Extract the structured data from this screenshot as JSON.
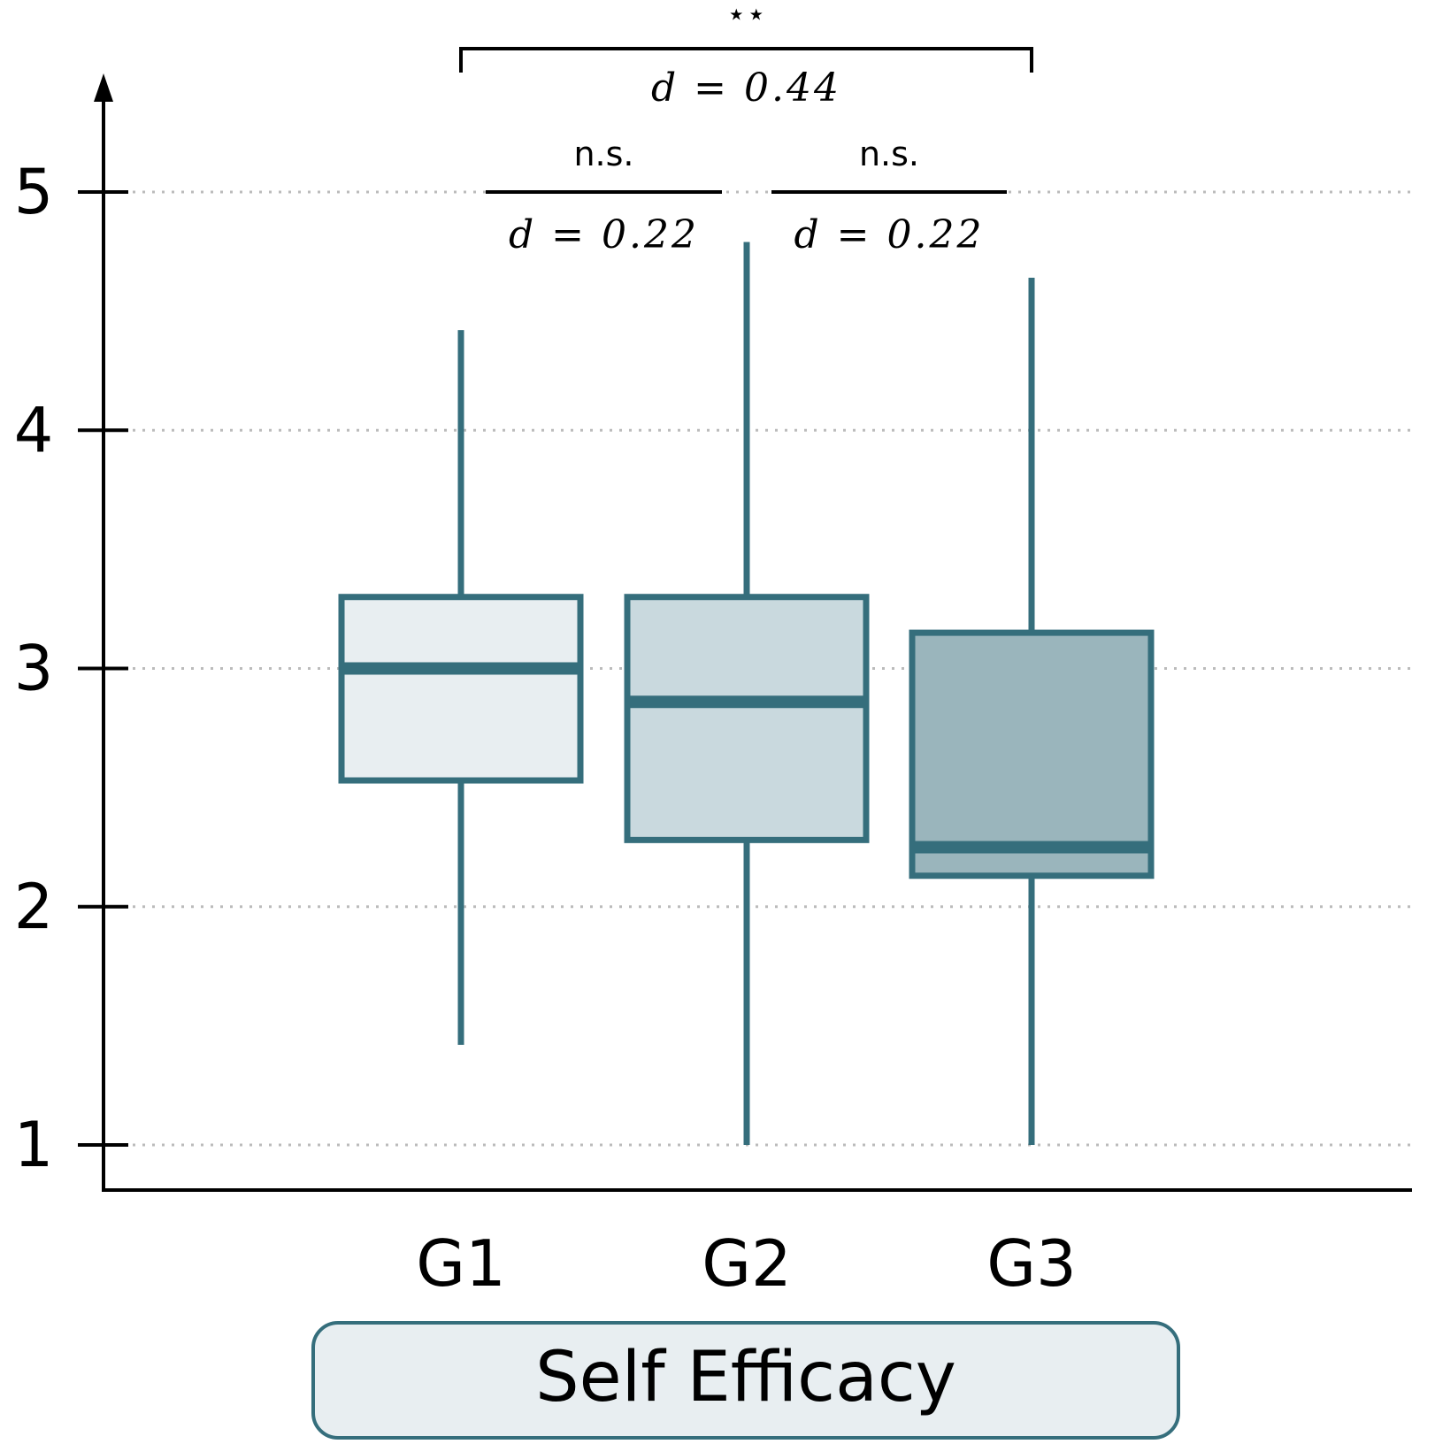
{
  "chart_data": {
    "type": "box",
    "title": "",
    "xlabel": "Self Efficacy",
    "ylabel": "",
    "ylim": [
      0.8,
      5.5
    ],
    "yticks": [
      "1",
      "2",
      "3",
      "4",
      "5"
    ],
    "grid": "horizontal dotted",
    "categories": [
      "G1",
      "G2",
      "G3"
    ],
    "boxes": [
      {
        "name": "G1",
        "whisker_low": 1.42,
        "q1": 2.53,
        "median": 3.0,
        "q3": 3.3,
        "whisker_high": 4.42,
        "fill": "#e8eef1"
      },
      {
        "name": "G2",
        "whisker_low": 1.0,
        "q1": 2.28,
        "median": 2.86,
        "q3": 3.3,
        "whisker_high": 4.79,
        "fill": "#c9d9de"
      },
      {
        "name": "G3",
        "whisker_low": 1.0,
        "q1": 2.13,
        "median": 2.25,
        "q3": 3.15,
        "whisker_high": 4.64,
        "fill": "#9ab5bc"
      }
    ],
    "annotations": [
      {
        "from": "G1",
        "to": "G2",
        "label": "n.s.",
        "effect": "d = 0.22"
      },
      {
        "from": "G2",
        "to": "G3",
        "label": "n.s.",
        "effect": "d = 0.22"
      },
      {
        "from": "G1",
        "to": "G3",
        "label": "⋆⋆",
        "effect": "d = 0.44"
      }
    ],
    "colors": {
      "stroke": "#356e7c",
      "axis": "#000000",
      "grid": "#bbbbbb",
      "label_box_fill": "#e8eef1",
      "label_box_stroke": "#356e7c"
    }
  }
}
